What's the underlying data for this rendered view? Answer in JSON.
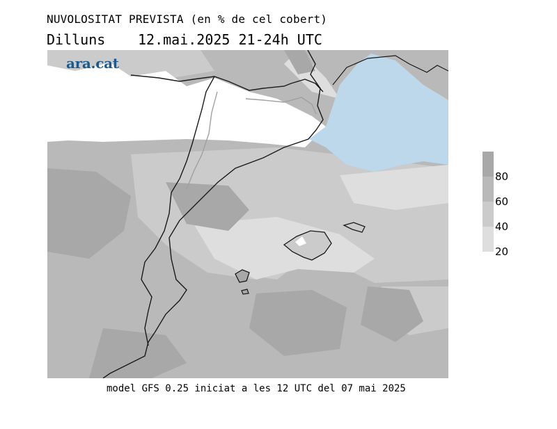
{
  "header": {
    "title": "NUVOLOSITAT PREVISTA (en % de cel cobert)",
    "day": "Dilluns",
    "datetime": "12.mai.2025 21-24h UTC"
  },
  "brand": {
    "logo_text": "ara.cat",
    "logo_color": "#1b5a8c"
  },
  "legend": {
    "labels": [
      "80",
      "60",
      "40",
      "20"
    ],
    "colors": [
      "#a8a8a8",
      "#b9b9b9",
      "#cbcbcb",
      "#dedede"
    ]
  },
  "map_colors": {
    "clear": "#ffffff",
    "sea_clear": "#bcd8ea",
    "level_20": "#dedede",
    "level_40": "#cbcbcb",
    "level_60": "#b9b9b9",
    "level_80": "#a8a8a8",
    "border": "#1a1a1a",
    "region_border": "#a0a0a0"
  },
  "footer": {
    "text": "model GFS 0.25 iniciat a les 12 UTC del 07 mai 2025"
  }
}
